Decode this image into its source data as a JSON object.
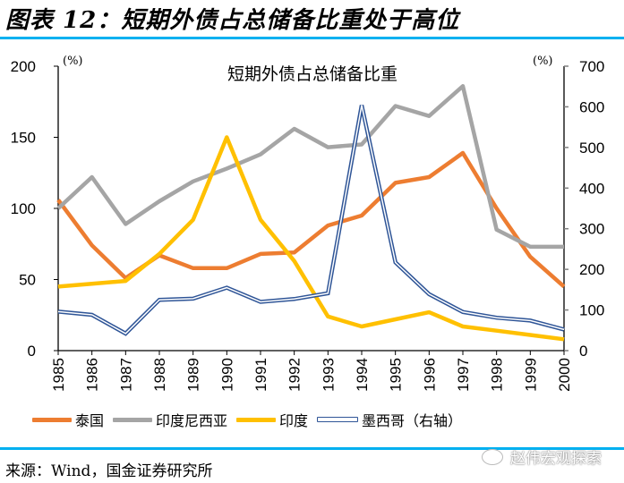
{
  "figure": {
    "title": "图表 12：短期外债占总储备比重处于高位",
    "source": "来源：Wind，国金证券研究所",
    "watermark": "赵伟宏观探索",
    "rule_color": "#00B0F0"
  },
  "chart_data": {
    "type": "line",
    "title": "短期外债占总储备比重",
    "x": [
      "1985",
      "1986",
      "1987",
      "1988",
      "1989",
      "1990",
      "1991",
      "1992",
      "1993",
      "1994",
      "1995",
      "1996",
      "1997",
      "1998",
      "1999",
      "2000"
    ],
    "left_axis": {
      "unit_label": "(%)",
      "ylim": [
        0,
        200
      ],
      "ticks": [
        "0",
        "50",
        "100",
        "150",
        "200"
      ]
    },
    "right_axis": {
      "unit_label": "(%)",
      "ylim": [
        0,
        700
      ],
      "ticks": [
        "0",
        "100",
        "200",
        "300",
        "400",
        "500",
        "600",
        "700"
      ]
    },
    "grid": false,
    "legend_position": "bottom",
    "series": [
      {
        "name": "泰国",
        "axis": "left",
        "color": "#ED7D31",
        "style": "solid",
        "values": [
          106,
          74,
          51,
          67,
          58,
          58,
          68,
          69,
          88,
          95,
          118,
          122,
          139,
          100,
          66,
          45
        ]
      },
      {
        "name": "印度尼西亚",
        "axis": "left",
        "color": "#A5A5A5",
        "style": "solid",
        "values": [
          100,
          122,
          89,
          105,
          119,
          128,
          138,
          156,
          143,
          145,
          172,
          165,
          186,
          85,
          73,
          73
        ]
      },
      {
        "name": "印度",
        "axis": "left",
        "color": "#FFC000",
        "style": "solid",
        "values": [
          45,
          47,
          49,
          68,
          92,
          150,
          92,
          63,
          24,
          17,
          22,
          27,
          17,
          14,
          11,
          8
        ]
      },
      {
        "name": "墨西哥（右轴）",
        "axis": "right",
        "color": "#2F5597",
        "style": "double",
        "values": [
          96,
          88,
          42,
          125,
          128,
          155,
          120,
          127,
          141,
          604,
          217,
          139,
          95,
          81,
          74,
          52
        ]
      }
    ]
  }
}
